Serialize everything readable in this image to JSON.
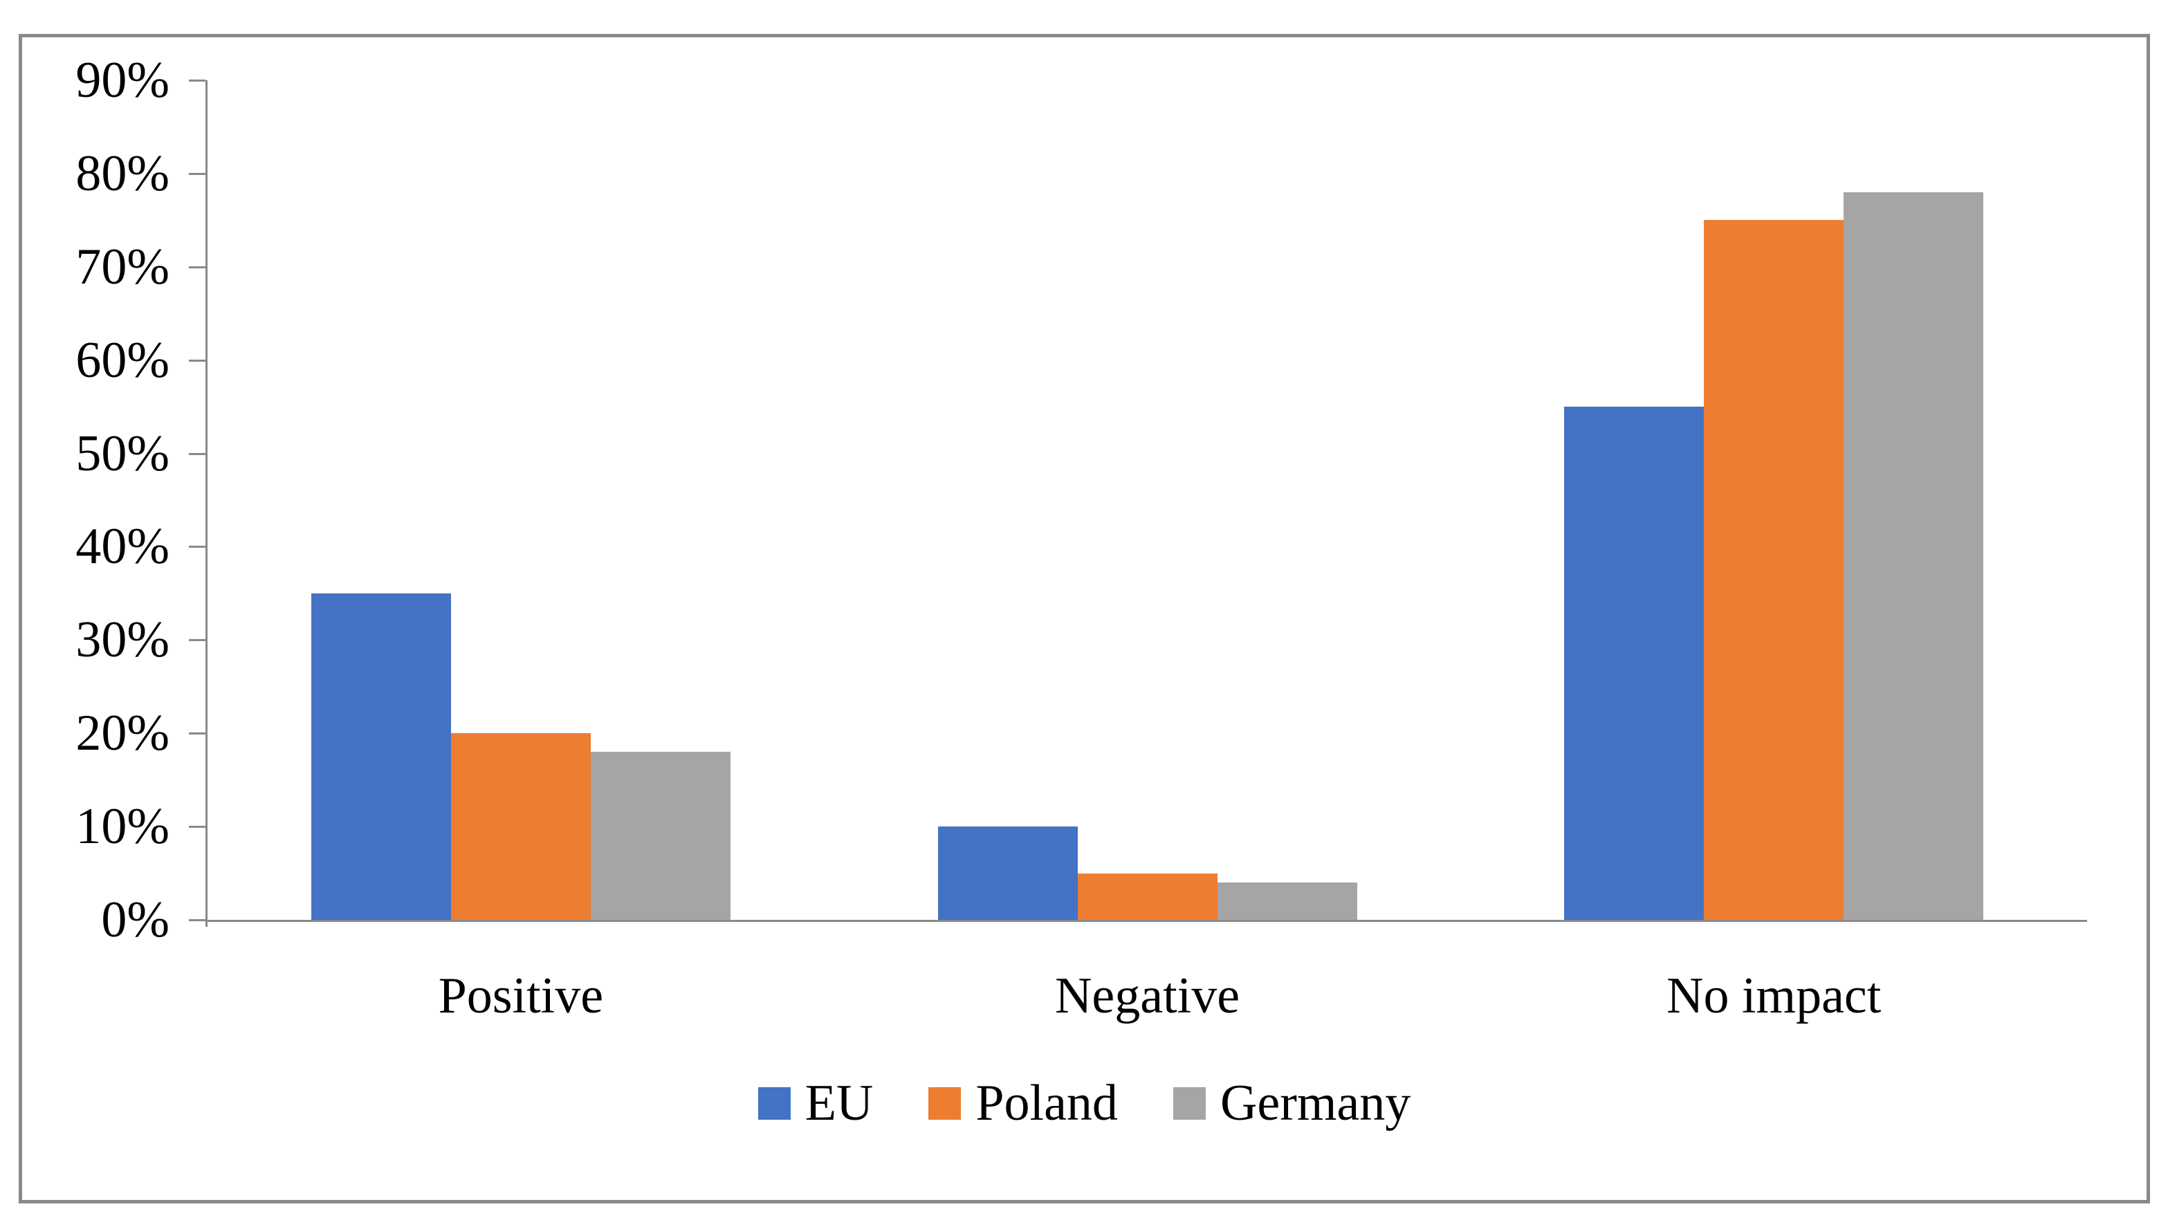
{
  "figure": {
    "background_color": "#ffffff",
    "frame_color": "#898989"
  },
  "chart_data": {
    "type": "bar",
    "title": "",
    "xlabel": "",
    "ylabel": "",
    "categories": [
      "Positive",
      "Negative",
      "No impact"
    ],
    "series": [
      {
        "name": "EU",
        "color": "#4472C4",
        "values": [
          35,
          10,
          55
        ]
      },
      {
        "name": "Poland",
        "color": "#ED7D31",
        "values": [
          20,
          5,
          75
        ]
      },
      {
        "name": "Germany",
        "color": "#A5A5A5",
        "values": [
          18,
          4,
          78
        ]
      }
    ],
    "y_axis": {
      "min": 0,
      "max": 90,
      "step": 10,
      "unit": "%",
      "tick_labels": [
        "0%",
        "10%",
        "20%",
        "30%",
        "40%",
        "50%",
        "60%",
        "70%",
        "80%",
        "90%"
      ]
    },
    "grid": false,
    "legend_position": "bottom",
    "axis_color": "#898989",
    "text_color": "#000000"
  }
}
